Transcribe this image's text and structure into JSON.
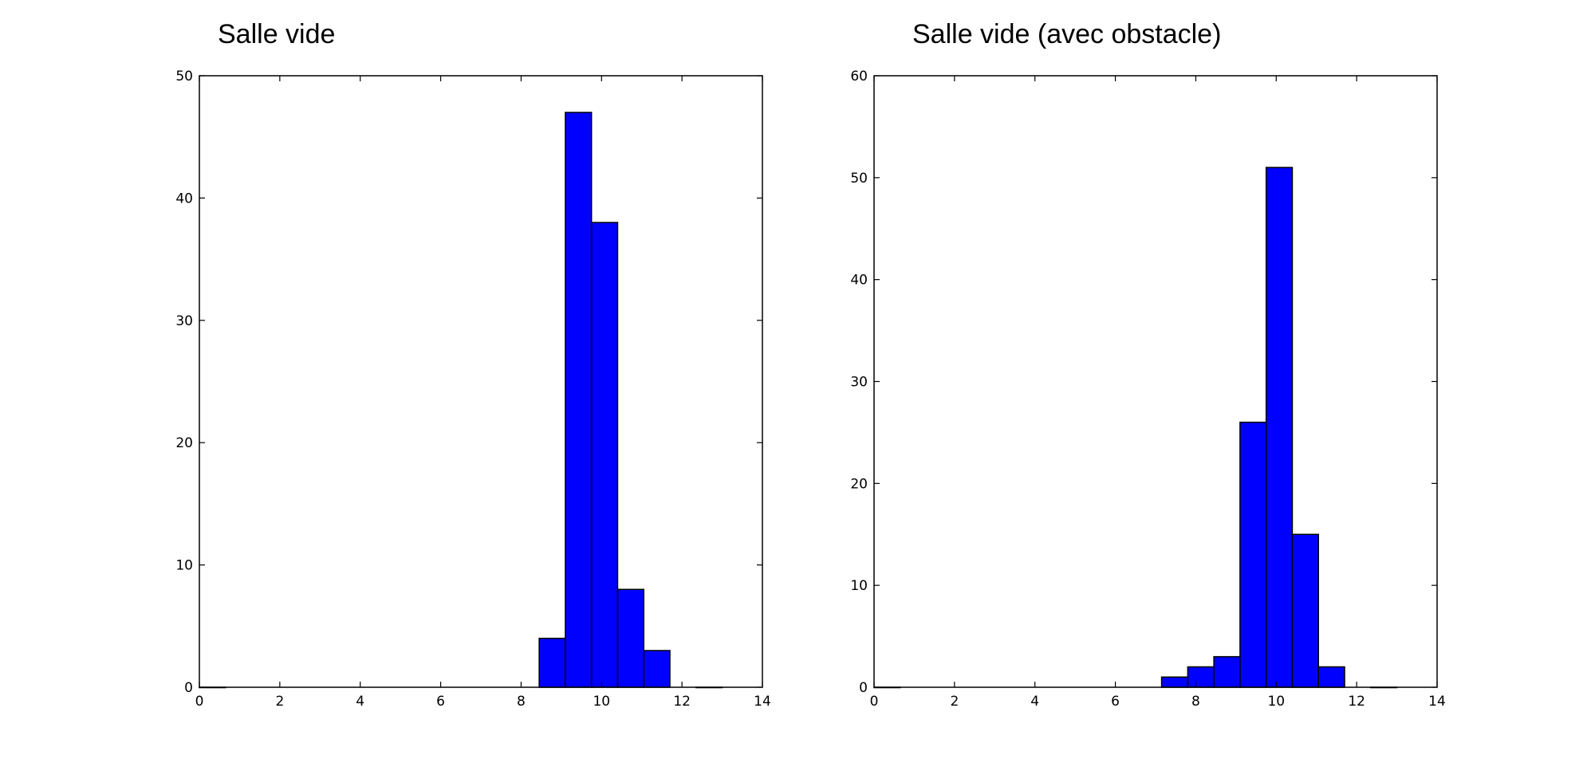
{
  "chart_data": [
    {
      "type": "bar",
      "title": "Salle vide",
      "xlabel": "",
      "ylabel": "",
      "xlim": [
        0,
        14
      ],
      "ylim": [
        0,
        50
      ],
      "xticks": [
        0,
        2,
        4,
        6,
        8,
        10,
        12,
        14
      ],
      "yticks": [
        0,
        10,
        20,
        30,
        40,
        50
      ],
      "grid": false,
      "bar_color": "#0000ff",
      "bins": [
        {
          "x0": 0.0,
          "x1": 0.65,
          "value": 0
        },
        {
          "x0": 8.45,
          "x1": 9.1,
          "value": 4
        },
        {
          "x0": 9.1,
          "x1": 9.75,
          "value": 47
        },
        {
          "x0": 9.75,
          "x1": 10.4,
          "value": 38
        },
        {
          "x0": 10.4,
          "x1": 11.05,
          "value": 8
        },
        {
          "x0": 11.05,
          "x1": 11.7,
          "value": 3
        },
        {
          "x0": 12.35,
          "x1": 13.0,
          "value": 0
        }
      ]
    },
    {
      "type": "bar",
      "title": "Salle vide (avec obstacle)",
      "xlabel": "",
      "ylabel": "",
      "xlim": [
        0,
        14
      ],
      "ylim": [
        0,
        60
      ],
      "xticks": [
        0,
        2,
        4,
        6,
        8,
        10,
        12,
        14
      ],
      "yticks": [
        0,
        10,
        20,
        30,
        40,
        50,
        60
      ],
      "grid": false,
      "bar_color": "#0000ff",
      "bins": [
        {
          "x0": 0.0,
          "x1": 0.65,
          "value": 0
        },
        {
          "x0": 7.15,
          "x1": 7.8,
          "value": 1
        },
        {
          "x0": 7.8,
          "x1": 8.45,
          "value": 2
        },
        {
          "x0": 8.45,
          "x1": 9.1,
          "value": 3
        },
        {
          "x0": 9.1,
          "x1": 9.75,
          "value": 26
        },
        {
          "x0": 9.75,
          "x1": 10.4,
          "value": 51
        },
        {
          "x0": 10.4,
          "x1": 11.05,
          "value": 15
        },
        {
          "x0": 11.05,
          "x1": 11.7,
          "value": 2
        },
        {
          "x0": 12.35,
          "x1": 13.0,
          "value": 0
        }
      ]
    }
  ]
}
